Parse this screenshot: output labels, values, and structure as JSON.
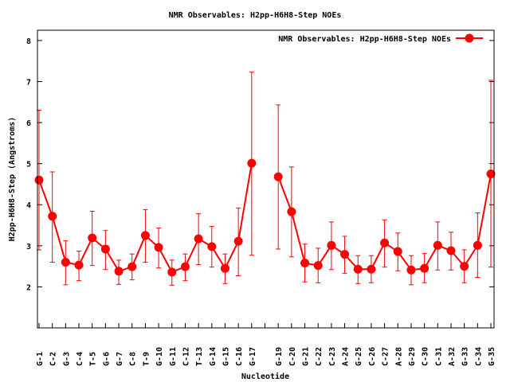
{
  "chart_data": {
    "type": "line",
    "title": "NMR Observables: H2pp-H6H8-Step NOEs",
    "xlabel": "Nucleotide",
    "ylabel": "H2pp-H6H8-Step (Angstroms)",
    "ylim": [
      1,
      8.25
    ],
    "xlim": [
      0.88,
      35.24
    ],
    "yticks": [
      2,
      3,
      4,
      5,
      6,
      7,
      8
    ],
    "grid": false,
    "legend": {
      "label": "NMR Observables: H2pp-H6H8-Step NOEs",
      "placement": "top-right"
    },
    "color": "#ff0000",
    "series": [
      {
        "name": "NMR Observables: H2pp-H6H8-Step NOEs",
        "segments": [
          [
            {
              "x": 1,
              "label": "G-1",
              "y": 4.6,
              "ylow": 2.9,
              "yhigh": 6.3
            },
            {
              "x": 2,
              "label": "C-2",
              "y": 3.72,
              "ylow": 2.6,
              "yhigh": 4.8
            },
            {
              "x": 3,
              "label": "G-3",
              "y": 2.6,
              "ylow": 2.05,
              "yhigh": 3.12
            },
            {
              "x": 4,
              "label": "C-4",
              "y": 2.53,
              "ylow": 2.15,
              "yhigh": 2.87
            },
            {
              "x": 5,
              "label": "T-5",
              "y": 3.19,
              "ylow": 2.52,
              "yhigh": 3.84
            },
            {
              "x": 6,
              "label": "G-6",
              "y": 2.92,
              "ylow": 2.42,
              "yhigh": 3.37
            },
            {
              "x": 7,
              "label": "G-7",
              "y": 2.38,
              "ylow": 2.06,
              "yhigh": 2.65
            },
            {
              "x": 8,
              "label": "C-8",
              "y": 2.49,
              "ylow": 2.17,
              "yhigh": 2.8
            },
            {
              "x": 9,
              "label": "T-9",
              "y": 3.25,
              "ylow": 2.6,
              "yhigh": 3.88
            },
            {
              "x": 10,
              "label": "G-10",
              "y": 2.96,
              "ylow": 2.46,
              "yhigh": 3.43
            },
            {
              "x": 11,
              "label": "G-11",
              "y": 2.36,
              "ylow": 2.04,
              "yhigh": 2.65
            },
            {
              "x": 12,
              "label": "C-12",
              "y": 2.49,
              "ylow": 2.15,
              "yhigh": 2.8
            },
            {
              "x": 13,
              "label": "T-13",
              "y": 3.17,
              "ylow": 2.54,
              "yhigh": 3.78
            },
            {
              "x": 14,
              "label": "G-14",
              "y": 2.98,
              "ylow": 2.48,
              "yhigh": 3.47
            },
            {
              "x": 15,
              "label": "G-15",
              "y": 2.45,
              "ylow": 2.08,
              "yhigh": 2.8
            },
            {
              "x": 16,
              "label": "C-16",
              "y": 3.11,
              "ylow": 2.27,
              "yhigh": 3.92
            },
            {
              "x": 17,
              "label": "G-17",
              "y": 5.01,
              "ylow": 2.77,
              "yhigh": 7.23
            }
          ],
          [
            {
              "x": 19,
              "label": "G-19",
              "y": 4.68,
              "ylow": 2.92,
              "yhigh": 6.43
            },
            {
              "x": 20,
              "label": "C-20",
              "y": 3.83,
              "ylow": 2.73,
              "yhigh": 4.92
            },
            {
              "x": 21,
              "label": "G-21",
              "y": 2.58,
              "ylow": 2.12,
              "yhigh": 3.04
            },
            {
              "x": 22,
              "label": "C-22",
              "y": 2.52,
              "ylow": 2.1,
              "yhigh": 2.94
            },
            {
              "x": 23,
              "label": "C-23",
              "y": 3.01,
              "ylow": 2.42,
              "yhigh": 3.58
            },
            {
              "x": 24,
              "label": "A-24",
              "y": 2.79,
              "ylow": 2.33,
              "yhigh": 3.23
            },
            {
              "x": 25,
              "label": "G-25",
              "y": 2.43,
              "ylow": 2.08,
              "yhigh": 2.76
            },
            {
              "x": 26,
              "label": "C-26",
              "y": 2.43,
              "ylow": 2.1,
              "yhigh": 2.76
            },
            {
              "x": 27,
              "label": "C-27",
              "y": 3.07,
              "ylow": 2.48,
              "yhigh": 3.63
            },
            {
              "x": 28,
              "label": "A-28",
              "y": 2.86,
              "ylow": 2.39,
              "yhigh": 3.31
            },
            {
              "x": 29,
              "label": "G-29",
              "y": 2.41,
              "ylow": 2.05,
              "yhigh": 2.76
            },
            {
              "x": 30,
              "label": "C-30",
              "y": 2.45,
              "ylow": 2.1,
              "yhigh": 2.81
            },
            {
              "x": 31,
              "label": "C-31",
              "y": 3.01,
              "ylow": 2.41,
              "yhigh": 3.58
            },
            {
              "x": 32,
              "label": "A-32",
              "y": 2.88,
              "ylow": 2.41,
              "yhigh": 3.33
            },
            {
              "x": 33,
              "label": "G-33",
              "y": 2.5,
              "ylow": 2.1,
              "yhigh": 2.9
            },
            {
              "x": 34,
              "label": "C-34",
              "y": 3.01,
              "ylow": 2.23,
              "yhigh": 3.8
            },
            {
              "x": 35,
              "label": "G-35",
              "y": 4.75,
              "ylow": 2.48,
              "yhigh": 7.03
            }
          ]
        ]
      }
    ]
  }
}
